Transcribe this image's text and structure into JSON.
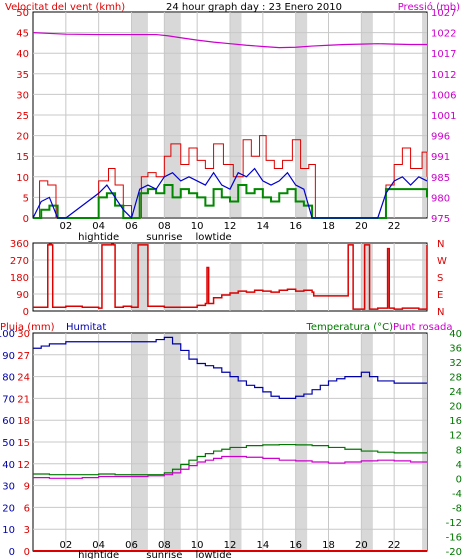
{
  "header": {
    "left_label": "Velocitat del vent (kmh)",
    "center_label": "24 hour graph day : 23 Enero 2010",
    "right_label": "Pressió (mb)"
  },
  "colors": {
    "wind": "#dd0000",
    "gust": "#dd0000",
    "wind_avg": "#0000cc",
    "wind_dir_mark": "#008800",
    "pressure": "#cc00cc",
    "direction": "#dd0000",
    "rain": "#dd0000",
    "humidity": "#0000aa",
    "temperature": "#007700",
    "dewpoint": "#cc00cc",
    "grid": "#c8c8c8",
    "daybar": "#d8d8d8"
  },
  "x_axis": {
    "ticks": [
      "02",
      "04",
      "06",
      "08",
      "10",
      "12",
      "14",
      "16",
      "18",
      "20",
      "22"
    ],
    "events": [
      "hightide",
      "sunrise",
      "lowtide"
    ]
  },
  "chart_data": [
    {
      "type": "line",
      "name": "wind-pressure",
      "x_range": [
        0,
        24
      ],
      "left_axis": {
        "ticks": [
          "0",
          "5",
          "10",
          "15",
          "20",
          "25",
          "30",
          "35",
          "40",
          "45",
          "50"
        ],
        "ylim": [
          0,
          50
        ]
      },
      "right_axis": {
        "ticks": [
          "975",
          "980",
          "985",
          "991",
          "996",
          "1001",
          "1006",
          "1012",
          "1017",
          "1022",
          "1027"
        ],
        "ylim": [
          975,
          1027
        ]
      },
      "series": [
        {
          "role": "gust",
          "axis": "left",
          "x": [
            0,
            0.4,
            0.9,
            1.4,
            2.0,
            4.0,
            4.6,
            5.0,
            5.5,
            6.0,
            6.6,
            7.0,
            7.5,
            8.0,
            8.4,
            9.0,
            9.5,
            10.0,
            10.5,
            11.0,
            11.6,
            12.2,
            12.8,
            13.3,
            13.8,
            14.2,
            14.7,
            15.2,
            15.8,
            16.3,
            16.8,
            17.2,
            21.0,
            21.5,
            22.0,
            22.5,
            23.0,
            23.7,
            24.0
          ],
          "values": [
            0,
            9,
            8,
            0,
            0,
            9,
            12,
            8,
            3,
            0,
            10,
            11,
            10,
            15,
            18,
            13,
            17,
            14,
            12,
            18,
            13,
            10,
            19,
            15,
            20,
            14,
            12,
            14,
            19,
            12,
            13,
            0,
            0,
            8,
            13,
            17,
            12,
            16,
            10
          ]
        },
        {
          "role": "wind_avg",
          "axis": "left",
          "x": [
            0,
            0.5,
            1.0,
            1.5,
            2.0,
            4.0,
            4.5,
            5.0,
            5.5,
            6.0,
            6.5,
            7.0,
            7.5,
            8.0,
            8.5,
            9.0,
            9.5,
            10.0,
            10.5,
            11.0,
            11.5,
            12.0,
            12.5,
            13.0,
            13.5,
            14.0,
            14.5,
            15.0,
            15.5,
            16.0,
            16.5,
            17.0,
            21.0,
            21.5,
            22.0,
            22.5,
            23.0,
            23.5,
            24.0
          ],
          "values": [
            0,
            4,
            5,
            0,
            0,
            6,
            8,
            5,
            2,
            0,
            7,
            8,
            7,
            10,
            11,
            9,
            10,
            9,
            8,
            11,
            8,
            7,
            11,
            10,
            12,
            9,
            8,
            9,
            11,
            8,
            7,
            0,
            0,
            6,
            9,
            10,
            8,
            10,
            9
          ]
        },
        {
          "role": "wind_min",
          "axis": "left",
          "x": [
            0,
            0.5,
            1.0,
            1.5,
            2.0,
            4.0,
            4.5,
            5.0,
            5.5,
            6.0,
            6.5,
            7.0,
            7.5,
            8.0,
            8.5,
            9.0,
            9.5,
            10.0,
            10.5,
            11.0,
            11.5,
            12.0,
            12.5,
            13.0,
            13.5,
            14.0,
            14.5,
            15.0,
            15.5,
            16.0,
            16.5,
            17.0,
            21.0,
            21.5,
            22.0,
            22.5,
            23.0,
            23.5,
            24.0
          ],
          "values": [
            0,
            2,
            3,
            0,
            0,
            5,
            6,
            3,
            0,
            0,
            6,
            7,
            6,
            8,
            5,
            7,
            6,
            5,
            3,
            7,
            5,
            4,
            8,
            6,
            7,
            5,
            4,
            6,
            7,
            4,
            3,
            0,
            0,
            7,
            7,
            7,
            7,
            7,
            5
          ]
        },
        {
          "role": "pressure",
          "axis": "right",
          "x": [
            0,
            2,
            4,
            6,
            7.5,
            8.2,
            9,
            10,
            11,
            12,
            13,
            14,
            15,
            16,
            17,
            18,
            19,
            20,
            21,
            22,
            23,
            24
          ],
          "values": [
            1021.8,
            1021.4,
            1021.3,
            1021.3,
            1021.3,
            1021.0,
            1020.5,
            1019.9,
            1019.4,
            1019.0,
            1018.6,
            1018.3,
            1018.0,
            1018.1,
            1018.4,
            1018.6,
            1018.8,
            1018.9,
            1019.0,
            1018.9,
            1018.8,
            1018.8
          ]
        }
      ]
    },
    {
      "type": "line",
      "name": "wind-direction",
      "x_range": [
        0,
        24
      ],
      "left_axis": {
        "ticks": [
          "0",
          "90",
          "180",
          "270",
          "360"
        ],
        "ylim": [
          0,
          360
        ]
      },
      "right_axis": {
        "ticks": [
          "N",
          "E",
          "S",
          "W",
          "N"
        ]
      },
      "series": [
        {
          "role": "direction",
          "axis": "left",
          "x": [
            0,
            0.8,
            0.9,
            1.0,
            1.1,
            1.2,
            2.0,
            3.0,
            4.0,
            4.2,
            4.3,
            4.8,
            4.9,
            5.0,
            5.5,
            6.0,
            6.3,
            6.4,
            7.0,
            8.0,
            9.0,
            10.0,
            10.5,
            10.6,
            10.7,
            11.0,
            11.5,
            12.0,
            12.5,
            13.0,
            13.5,
            14.0,
            14.5,
            15.0,
            15.5,
            16.0,
            16.5,
            17.0,
            17.1,
            18.0,
            19.0,
            19.2,
            19.3,
            19.5,
            19.6,
            20.0,
            20.2,
            20.3,
            20.5,
            20.6,
            21.0,
            21.6,
            21.7,
            22.0,
            22.5,
            23.5,
            24.0
          ],
          "values": [
            20,
            20,
            350,
            355,
            350,
            20,
            25,
            20,
            15,
            350,
            350,
            355,
            350,
            20,
            25,
            20,
            20,
            350,
            25,
            20,
            20,
            30,
            40,
            230,
            40,
            70,
            85,
            95,
            105,
            100,
            110,
            105,
            100,
            110,
            115,
            105,
            110,
            100,
            80,
            80,
            80,
            350,
            350,
            10,
            10,
            10,
            350,
            350,
            10,
            10,
            15,
            330,
            15,
            10,
            15,
            10,
            350
          ]
        }
      ]
    },
    {
      "type": "line",
      "name": "rain-humidity-temperature",
      "x_range": [
        0,
        24
      ],
      "left_axis_rain": {
        "label": "Pluja (mm)",
        "ticks": [
          "0",
          "3",
          "6",
          "9",
          "12",
          "15",
          "18",
          "21",
          "24",
          "27",
          "30"
        ],
        "ylim": [
          0,
          30
        ]
      },
      "left_axis_humidity": {
        "label": "Humitat",
        "ticks": [
          "0",
          "10",
          "20",
          "30",
          "40",
          "50",
          "60",
          "70",
          "80",
          "90",
          "100"
        ],
        "ylim": [
          0,
          100
        ]
      },
      "right_axis": {
        "label": "Temperatura (°C)",
        "label2": "Punt rosada",
        "ticks": [
          "-20",
          "-16",
          "-12",
          "-8",
          "-4",
          "0",
          "4",
          "8",
          "12",
          "16",
          "20",
          "24",
          "28",
          "32",
          "36",
          "40"
        ],
        "ylim": [
          -20,
          40
        ]
      },
      "series": [
        {
          "role": "rain",
          "axis": "rain",
          "x": [
            0,
            24
          ],
          "values": [
            0,
            0
          ]
        },
        {
          "role": "humidity",
          "axis": "humidity",
          "x": [
            0,
            0.5,
            1,
            2,
            3,
            4,
            5,
            6,
            7,
            7.5,
            8,
            8.5,
            9,
            9.5,
            10,
            10.5,
            11,
            11.5,
            12,
            12.5,
            13,
            13.5,
            14,
            14.5,
            15,
            15.5,
            16,
            16.5,
            17,
            17.5,
            18,
            18.5,
            19,
            19.5,
            20,
            20.5,
            21,
            22,
            23,
            24
          ],
          "values": [
            93,
            94,
            95,
            96,
            96,
            96,
            96,
            96,
            96,
            97,
            98,
            95,
            92,
            88,
            86,
            85,
            84,
            82,
            80,
            78,
            76,
            75,
            73,
            71,
            70,
            70,
            71,
            72,
            74,
            76,
            78,
            79,
            80,
            80,
            82,
            80,
            78,
            77,
            77,
            77
          ]
        },
        {
          "role": "temperature",
          "axis": "right",
          "x": [
            0,
            1,
            2,
            3,
            4,
            5,
            6,
            7,
            8,
            8.5,
            9,
            9.5,
            10,
            10.5,
            11,
            11.5,
            12,
            13,
            14,
            15,
            16,
            17,
            18,
            19,
            20,
            21,
            22,
            23,
            24
          ],
          "values": [
            1.2,
            1.0,
            1.0,
            1.0,
            1.2,
            1.0,
            1.0,
            1.0,
            1.5,
            2.5,
            3.8,
            5.0,
            6.0,
            6.8,
            7.5,
            8.0,
            8.5,
            9.0,
            9.2,
            9.3,
            9.2,
            9.0,
            8.5,
            8.0,
            7.5,
            7.2,
            7.0,
            7.0,
            7.0
          ]
        },
        {
          "role": "dewpoint",
          "axis": "right",
          "x": [
            0,
            1,
            2,
            3,
            4,
            5,
            6,
            7,
            8,
            8.5,
            9,
            9.5,
            10,
            10.5,
            11,
            11.5,
            12,
            13,
            14,
            15,
            16,
            17,
            18,
            19,
            20,
            21,
            22,
            23,
            24
          ],
          "values": [
            0.2,
            0.0,
            0.0,
            0.2,
            0.5,
            0.5,
            0.5,
            0.7,
            1.0,
            1.5,
            2.5,
            3.5,
            4.5,
            5.0,
            5.5,
            6.0,
            6.0,
            5.8,
            5.5,
            5.0,
            4.8,
            4.5,
            4.2,
            4.5,
            4.8,
            5.0,
            4.8,
            4.5,
            4.5
          ]
        }
      ]
    }
  ]
}
